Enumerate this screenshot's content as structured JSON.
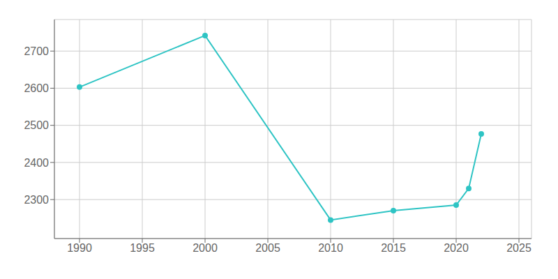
{
  "chart_data": {
    "type": "line",
    "x": [
      1990,
      2000,
      2010,
      2015,
      2020,
      2021,
      2022
    ],
    "values": [
      2603,
      2742,
      2245,
      2270,
      2285,
      2330,
      2477
    ],
    "color": "#2EC4C4",
    "marker": "circle",
    "xlim": [
      1988,
      2026
    ],
    "ylim": [
      2195,
      2785
    ],
    "xticks": [
      1990,
      1995,
      2000,
      2005,
      2010,
      2015,
      2020,
      2025
    ],
    "yticks": [
      2300,
      2400,
      2500,
      2600,
      2700
    ],
    "grid": true
  }
}
